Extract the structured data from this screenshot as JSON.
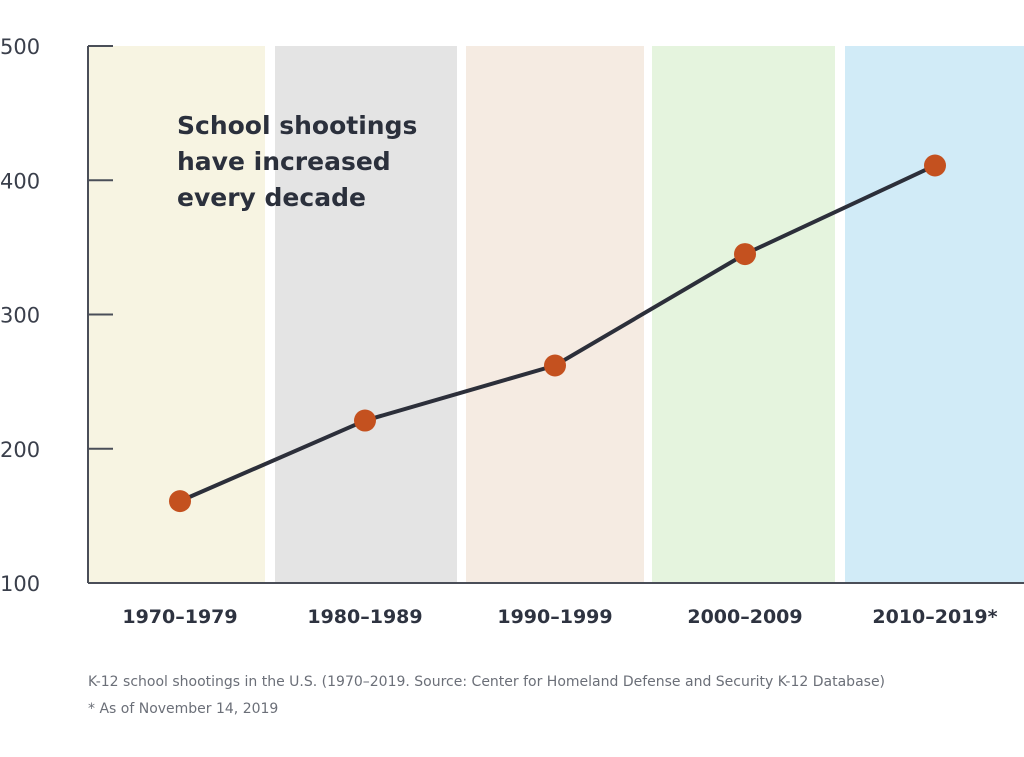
{
  "chart_data": {
    "type": "line",
    "title": "",
    "annotation": [
      "School shootings",
      "have increased",
      "every decade"
    ],
    "categories": [
      "1970–1979",
      "1980–1989",
      "1990–1999",
      "2000–2009",
      "2010–2019*"
    ],
    "series": [
      {
        "name": "K-12 school shootings",
        "values": [
          161,
          221,
          262,
          345,
          411
        ]
      }
    ],
    "xlabel": "",
    "ylabel": "",
    "ylim": [
      100,
      500
    ],
    "yticks": [
      100,
      200,
      300,
      400,
      500
    ],
    "grid": false,
    "legend": "none",
    "colors": {
      "line": "#2c2f3a",
      "marker": "#c4511f",
      "axis": "#4a4e58",
      "bands": [
        "#f7f4e2",
        "#e4e4e4",
        "#f5ebe2",
        "#e5f4de",
        "#d1ebf7"
      ]
    }
  },
  "captions": {
    "source": "K-12 school shootings in the U.S. (1970–2019. Source: Center for Homeland Defense and Security K-12 Database)",
    "footnote": "* As of November 14, 2019"
  }
}
